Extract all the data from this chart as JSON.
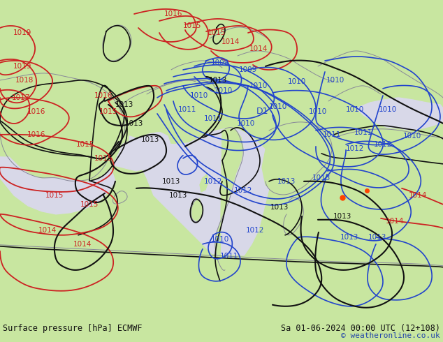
{
  "title_left": "Surface pressure [hPa] ECMWF",
  "title_right": "Sa 01-06-2024 00:00 UTC (12+108)",
  "copyright": "© weatheronline.co.uk",
  "land_color": "#c8e6a0",
  "sea_color": "#d8d8e8",
  "footer_bg": "#b8c8b8",
  "footer_text_color": "#111111",
  "fig_width": 6.34,
  "fig_height": 4.9,
  "dpi": 100,
  "red_color": "#cc2222",
  "blue_color": "#2244cc",
  "black_color": "#111111",
  "gray_color": "#888899"
}
